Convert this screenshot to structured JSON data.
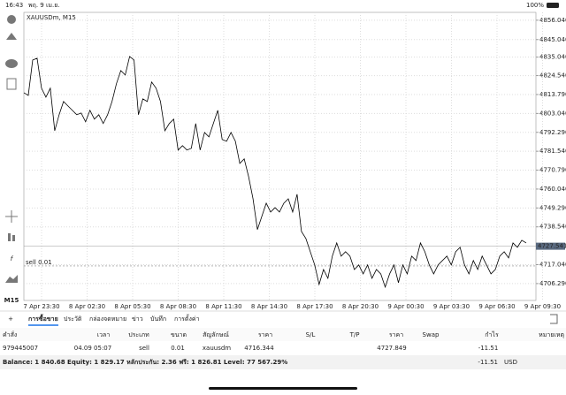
{
  "status_bar": {
    "time": "16:43",
    "date": "พฤ. 9 เม.ย.",
    "battery": "100%"
  },
  "toolbar": {
    "timeframe": "M15"
  },
  "chart": {
    "type": "line",
    "symbol_label": "XAUUSDm, M15",
    "color": "#000000",
    "categories": [
      "7 Apr 23:30",
      "8 Apr 02:30",
      "8 Apr 05:30",
      "8 Apr 08:30",
      "8 Apr 11:30",
      "8 Apr 14:30",
      "8 Apr 17:30",
      "8 Apr 20:30",
      "9 Apr 00:30",
      "9 Apr 03:30",
      "9 Apr 06:30",
      "9 Apr 09:30"
    ],
    "values": [
      4814.8,
      4813.3,
      4833.4,
      4834.4,
      4817.4,
      4812.3,
      4817.4,
      4793.2,
      4802.3,
      4809.8,
      4807.3,
      4804.8,
      4802.3,
      4803.3,
      4798.3,
      4804.8,
      4799.8,
      4802.3,
      4797.3,
      4802.3,
      4809.8,
      4819.9,
      4827.4,
      4824.9,
      4835.4,
      4833.4,
      4802.3,
      4811.3,
      4809.8,
      4820.9,
      4817.4,
      4809.8,
      4793.2,
      4797.3,
      4799.8,
      4782.2,
      4784.7,
      4782.2,
      4783.2,
      4797.3,
      4782.2,
      4792.2,
      4789.7,
      4797.3,
      4804.8,
      4788.2,
      4787.2,
      4792.2,
      4787.2,
      4774.6,
      4777.2,
      4767.1,
      4754.5,
      4737.0,
      4744.5,
      4752.0,
      4747.0,
      4749.5,
      4747.0,
      4752.0,
      4754.5,
      4747.0,
      4757.1,
      4735.9,
      4731.9,
      4724.4,
      4716.9,
      4705.8,
      4714.3,
      4709.3,
      4721.9,
      4729.4,
      4721.9,
      4724.4,
      4721.9,
      4714.3,
      4716.9,
      4711.8,
      4716.9,
      4709.3,
      4714.3,
      4711.8,
      4704.3,
      4711.8,
      4716.9,
      4706.8,
      4716.9,
      4711.8,
      4721.9,
      4719.4,
      4729.4,
      4724.4,
      4716.9,
      4711.8,
      4716.9,
      4719.4,
      4721.9,
      4716.9,
      4724.4,
      4726.9,
      4716.9,
      4711.8,
      4719.4,
      4714.3,
      4721.9,
      4716.9,
      4711.8,
      4714.3,
      4721.9,
      4724.4,
      4720.9,
      4729.4,
      4726.9,
      4730.9,
      4729.4
    ],
    "ylim": [
      4696.7,
      4860.5
    ],
    "yticks": [
      {
        "value": 4856.04,
        "label": "4856.040"
      },
      {
        "value": 4845.04,
        "label": "4845.040"
      },
      {
        "value": 4835.04,
        "label": "4835.040"
      },
      {
        "value": 4824.54,
        "label": "4824.540"
      },
      {
        "value": 4813.79,
        "label": "4813.790"
      },
      {
        "value": 4803.04,
        "label": "4803.040"
      },
      {
        "value": 4792.29,
        "label": "4792.290"
      },
      {
        "value": 4781.54,
        "label": "4781.540"
      },
      {
        "value": 4770.79,
        "label": "4770.790"
      },
      {
        "value": 4760.04,
        "label": "4760.040"
      },
      {
        "value": 4749.29,
        "label": "4749.290"
      },
      {
        "value": 4738.54,
        "label": "4738.540"
      },
      {
        "value": 4717.04,
        "label": "4717.040"
      },
      {
        "value": 4706.29,
        "label": "4706.290"
      }
    ],
    "grid": true,
    "current_price": 4727.541,
    "order_line": {
      "label": "sell 0.01",
      "value": 4716.344
    }
  },
  "tabs": [
    "การซื้อขาย",
    "ประวัติ",
    "กล่องจดหมาย",
    "ข่าว",
    "บันทึก",
    "การตั้งค่า"
  ],
  "table": {
    "headers": [
      "คำสั่ง",
      "เวลา",
      "ประเภท",
      "ขนาด",
      "สัญลักษณ์",
      "ราคา",
      "S/L",
      "T/P",
      "ราคา",
      "Swap",
      "กำไร",
      "หมายเหตุ"
    ],
    "row": {
      "order": "979445007",
      "time": "04.09 05:07",
      "type": "sell",
      "volume": "0.01",
      "symbol": "xauusdm",
      "open_price": "4716.344",
      "price": "4727.849",
      "profit": "-11.51"
    }
  },
  "summary": {
    "text": "Balance: 1 840.68 Equity: 1 829.17 หลักประกัน: 2.36 ฟรี: 1 826.81 Level: 77 567.29%",
    "profit": "-11.51",
    "currency": "USD"
  }
}
